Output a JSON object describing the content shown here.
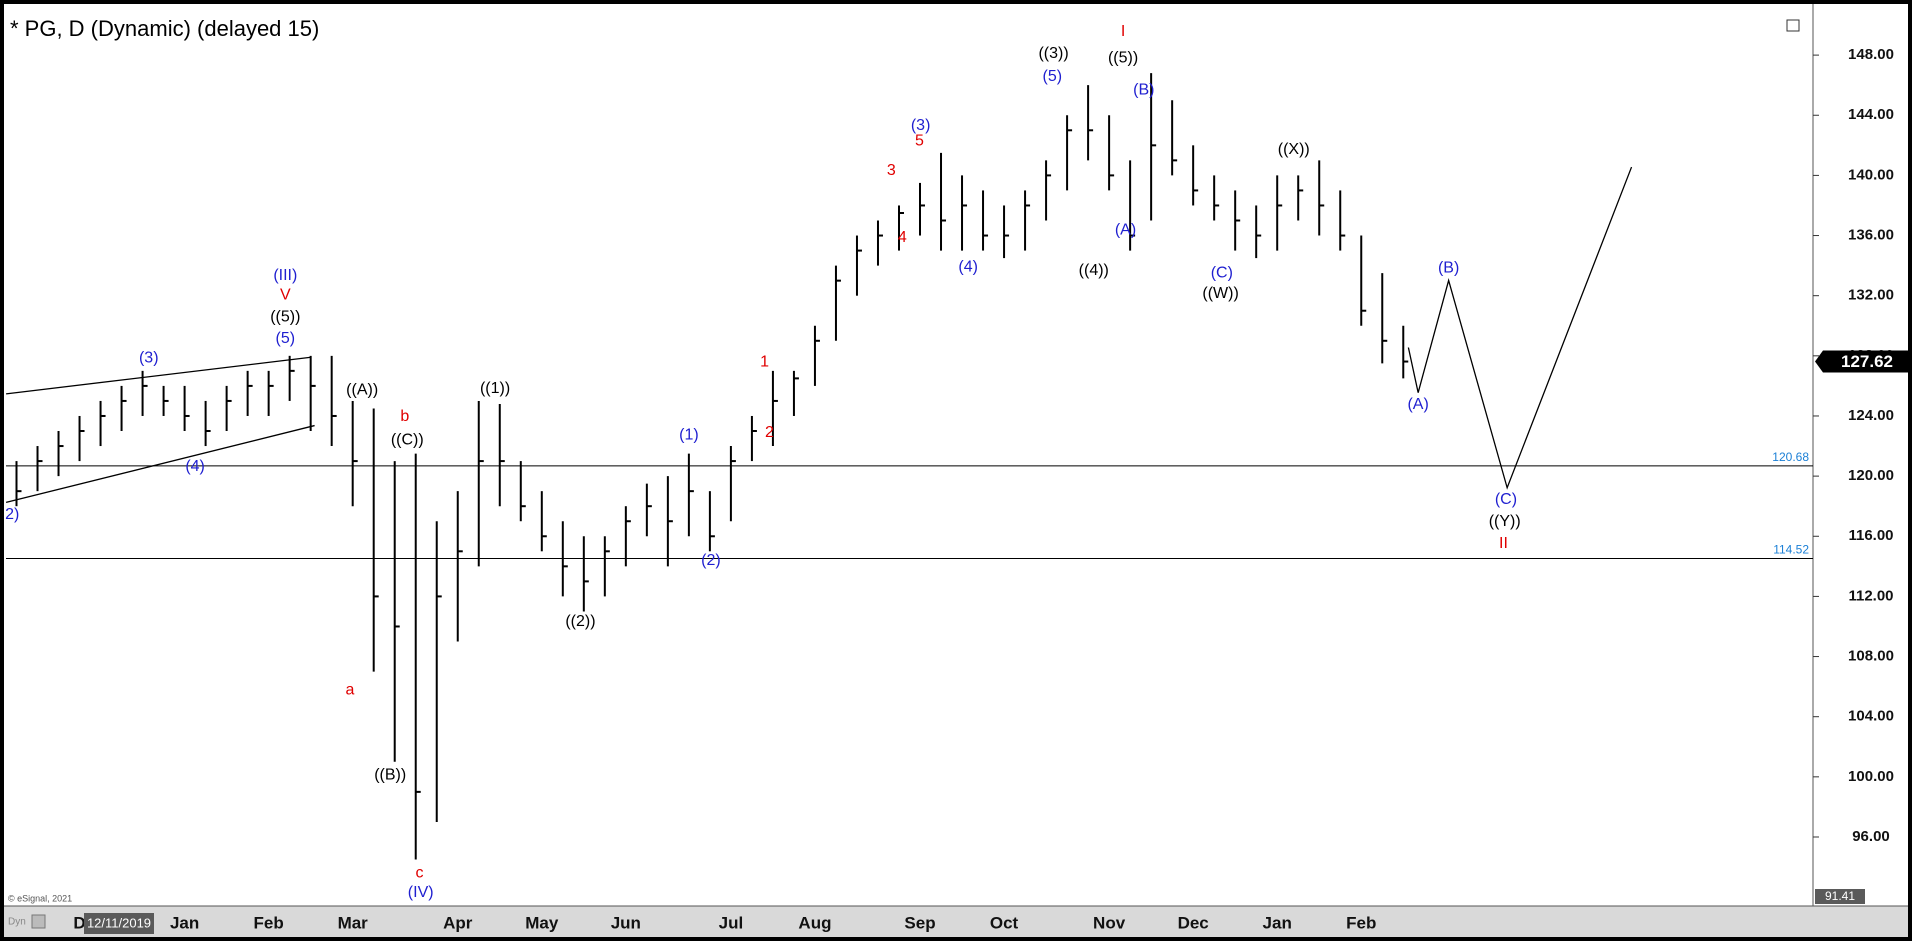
{
  "chart_data": {
    "type": "ohlc",
    "title": "* PG, D (Dynamic) (delayed 15)",
    "copyright": "© eSignal, 2021",
    "mode_label": "Dyn",
    "cursor_date": "12/11/2019",
    "color": "#000000",
    "categories": [
      null,
      null,
      null,
      "D",
      null,
      null,
      null,
      null,
      "Jan",
      null,
      null,
      null,
      "Feb",
      null,
      null,
      null,
      "Mar",
      null,
      null,
      null,
      null,
      "Apr",
      null,
      null,
      null,
      "May",
      null,
      null,
      null,
      "Jun",
      null,
      null,
      null,
      null,
      "Jul",
      null,
      null,
      null,
      "Aug",
      null,
      null,
      null,
      null,
      "Sep",
      null,
      null,
      null,
      "Oct",
      null,
      null,
      null,
      null,
      "Nov",
      null,
      null,
      null,
      "Dec",
      null,
      null,
      null,
      "Jan",
      null,
      null,
      null,
      "Feb",
      null,
      null
    ],
    "high": [
      121,
      122,
      123,
      124,
      125,
      126,
      127,
      126,
      126,
      125,
      126,
      127,
      127,
      128,
      128,
      128,
      125,
      124.5,
      121,
      121.5,
      117,
      119,
      125,
      124.8,
      121,
      119,
      117,
      116,
      116,
      118,
      119.5,
      120,
      121.5,
      119,
      122,
      124,
      127,
      127,
      130,
      134,
      136,
      137,
      138,
      139.5,
      141.5,
      140,
      139,
      138,
      139,
      141,
      144,
      146,
      144,
      141,
      146.8,
      145,
      142,
      140,
      139,
      138,
      140,
      140,
      141,
      139,
      136,
      133.5,
      130
    ],
    "low": [
      118,
      119,
      120,
      121,
      122,
      123,
      124,
      124,
      123,
      122,
      123,
      124,
      124,
      125,
      123,
      122,
      118,
      107,
      101,
      94.5,
      97,
      109,
      114,
      118,
      117,
      115,
      112,
      111,
      112,
      114,
      116,
      114,
      116,
      115,
      117,
      121,
      122,
      124,
      126,
      129,
      132,
      134,
      135,
      136,
      135,
      135,
      135,
      134.5,
      135,
      137,
      139,
      141,
      139,
      135,
      137,
      140,
      138,
      137,
      135,
      134.5,
      135,
      137,
      136,
      135,
      130,
      127.5,
      126.5
    ],
    "close": [
      119,
      121,
      122,
      123,
      124,
      125,
      126,
      125,
      124,
      123,
      125,
      126,
      126,
      127,
      126,
      124,
      121,
      112,
      110,
      99,
      112,
      115,
      121,
      121,
      118,
      116,
      114,
      113,
      115,
      117,
      118,
      117,
      119,
      116,
      121,
      123,
      125,
      126.5,
      129,
      133,
      135,
      136,
      137.5,
      138,
      137,
      138,
      136,
      136,
      138,
      140,
      143,
      143,
      140,
      136,
      142,
      141,
      139,
      138,
      137,
      136,
      138,
      139,
      138,
      136,
      131,
      129,
      127.62
    ],
    "ylim": [
      91.41,
      151
    ],
    "yticks": [
      {
        "value": 96,
        "label": "96.00"
      },
      {
        "value": 100,
        "label": "100.00"
      },
      {
        "value": 104,
        "label": "104.00"
      },
      {
        "value": 108,
        "label": "108.00"
      },
      {
        "value": 112,
        "label": "112.00"
      },
      {
        "value": 116,
        "label": "116.00"
      },
      {
        "value": 120,
        "label": "120.00"
      },
      {
        "value": 124,
        "label": "124.00"
      },
      {
        "value": 128,
        "label": "128.00"
      },
      {
        "value": 132,
        "label": "132.00"
      },
      {
        "value": 136,
        "label": "136.00"
      },
      {
        "value": 140,
        "label": "140.00"
      },
      {
        "value": 144,
        "label": "144.00"
      },
      {
        "value": 148,
        "label": "148.00"
      }
    ],
    "levels": [
      120.68,
      114.52
    ],
    "level_color": "#1a7fd6",
    "last_price": 127.62,
    "annotations": [
      {
        "text": "(III)",
        "color": "#1f1fd0"
      },
      {
        "text": "V",
        "color": "#e00000"
      },
      {
        "text": "((5))",
        "color": "#000000"
      },
      {
        "text": "(5)",
        "color": "#1f1fd0"
      },
      {
        "text": "(3)",
        "color": "#1f1fd0"
      },
      {
        "text": "(4)",
        "color": "#1f1fd0"
      },
      {
        "text": "2)",
        "color": "#1f1fd0"
      },
      {
        "text": "((A))",
        "color": "#000000"
      },
      {
        "text": "b",
        "color": "#e00000"
      },
      {
        "text": "((C))",
        "color": "#000000"
      },
      {
        "text": "a",
        "color": "#e00000"
      },
      {
        "text": "((B))",
        "color": "#000000"
      },
      {
        "text": "c",
        "color": "#e00000"
      },
      {
        "text": "(IV)",
        "color": "#1f1fd0"
      },
      {
        "text": "((1))",
        "color": "#000000"
      },
      {
        "text": "((2))",
        "color": "#000000"
      },
      {
        "text": "(1)",
        "color": "#1f1fd0"
      },
      {
        "text": "(2)",
        "color": "#1f1fd0"
      },
      {
        "text": "1",
        "color": "#e00000"
      },
      {
        "text": "2",
        "color": "#e00000"
      },
      {
        "text": "3",
        "color": "#e00000"
      },
      {
        "text": "4",
        "color": "#e00000"
      },
      {
        "text": "(3)",
        "color": "#1f1fd0"
      },
      {
        "text": "5",
        "color": "#e00000"
      },
      {
        "text": "(4)",
        "color": "#1f1fd0"
      },
      {
        "text": "((3))",
        "color": "#000000"
      },
      {
        "text": "(5)",
        "color": "#1f1fd0"
      },
      {
        "text": "I",
        "color": "#e00000"
      },
      {
        "text": "((5))",
        "color": "#000000"
      },
      {
        "text": "(B)",
        "color": "#1f1fd0"
      },
      {
        "text": "(A)",
        "color": "#1f1fd0"
      },
      {
        "text": "((4))",
        "color": "#000000"
      },
      {
        "text": "(C)",
        "color": "#1f1fd0"
      },
      {
        "text": "((W))",
        "color": "#000000"
      },
      {
        "text": "((X))",
        "color": "#000000"
      },
      {
        "text": "(B)",
        "color": "#1f1fd0"
      },
      {
        "text": "(A)",
        "color": "#1f1fd0"
      },
      {
        "text": "(C)",
        "color": "#1f1fd0"
      },
      {
        "text": "((Y))",
        "color": "#000000"
      },
      {
        "text": "II",
        "color": "#e00000"
      }
    ]
  }
}
